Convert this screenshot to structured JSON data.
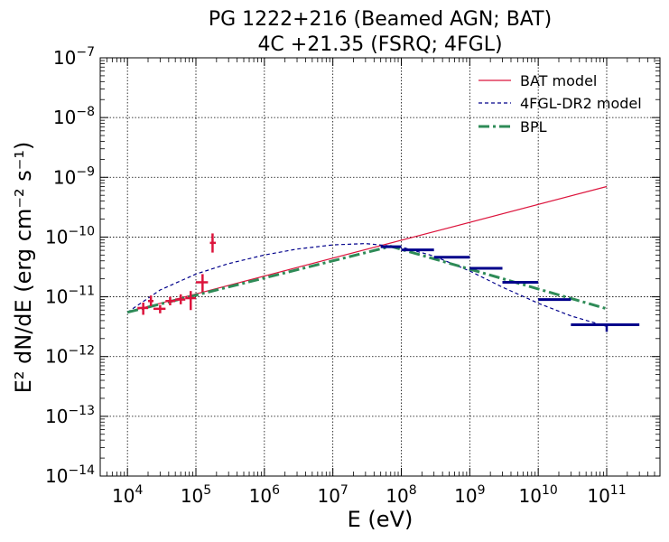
{
  "chart_data": {
    "type": "line",
    "title_line1": "PG 1222+216 (Beamed AGN; BAT)",
    "title_line2": "4C +21.35 (FSRQ; 4FGL)",
    "xlabel": "E (eV)",
    "ylabel": "E² dN/dE (erg cm⁻² s⁻¹)",
    "x_scale": "log",
    "y_scale": "log",
    "xlim": [
      4000,
      600000000000.0
    ],
    "ylim": [
      1e-14,
      1e-07
    ],
    "grid": true,
    "legend_position": "top-right",
    "x_ticks": [
      {
        "value": 10000,
        "base": "10",
        "exp": "4"
      },
      {
        "value": 100000,
        "base": "10",
        "exp": "5"
      },
      {
        "value": 1000000,
        "base": "10",
        "exp": "6"
      },
      {
        "value": 10000000,
        "base": "10",
        "exp": "7"
      },
      {
        "value": 100000000,
        "base": "10",
        "exp": "8"
      },
      {
        "value": 1000000000,
        "base": "10",
        "exp": "9"
      },
      {
        "value": 10000000000,
        "base": "10",
        "exp": "10"
      },
      {
        "value": 100000000000,
        "base": "10",
        "exp": "11"
      }
    ],
    "y_ticks": [
      {
        "value": 1e-14,
        "base": "10",
        "exp": "−14"
      },
      {
        "value": 1e-13,
        "base": "10",
        "exp": "−13"
      },
      {
        "value": 1e-12,
        "base": "10",
        "exp": "−12"
      },
      {
        "value": 1e-11,
        "base": "10",
        "exp": "−11"
      },
      {
        "value": 1e-10,
        "base": "10",
        "exp": "−10"
      },
      {
        "value": 1e-09,
        "base": "10",
        "exp": "−9"
      },
      {
        "value": 1e-08,
        "base": "10",
        "exp": "−8"
      },
      {
        "value": 1e-07,
        "base": "10",
        "exp": "−7"
      }
    ],
    "series": [
      {
        "name": "BAT model",
        "color": "#dc143c",
        "style": "solid",
        "x": [
          10000,
          100000000000
        ],
        "y": [
          5.6e-12,
          7e-10
        ]
      },
      {
        "name": "4FGL-DR2 model",
        "color": "#00008b",
        "style": "dashed",
        "x": [
          10000,
          30000,
          100000,
          300000,
          1000000,
          3000000,
          10000000,
          30000000,
          100000000,
          300000000,
          1000000000,
          3000000000,
          10000000000,
          30000000000,
          100000000000
        ],
        "y": [
          5.5e-12,
          1.3e-11,
          2.4e-11,
          3.6e-11,
          5e-11,
          6.3e-11,
          7.4e-11,
          7.8e-11,
          6.8e-11,
          4.8e-11,
          2.7e-11,
          1.45e-11,
          7.8e-12,
          4.8e-12,
          3.2e-12
        ]
      },
      {
        "name": "BPL",
        "color": "#2e8b57",
        "style": "dashdot",
        "x": [
          10000,
          70000000,
          100000000000
        ],
        "y": [
          5.5e-12,
          7e-11,
          6.3e-12
        ]
      }
    ],
    "bat_points": [
      {
        "x": 17000,
        "y": 6.5e-12,
        "xerr": [
          14000,
          20000
        ],
        "yerr": [
          5e-12,
          8e-12
        ]
      },
      {
        "x": 22000,
        "y": 8.5e-12,
        "xerr": [
          20000,
          24000
        ],
        "yerr": [
          7e-12,
          1.05e-11
        ]
      },
      {
        "x": 30000,
        "y": 6.3e-12,
        "xerr": [
          24000,
          36000
        ],
        "yerr": [
          5.3e-12,
          7.3e-12
        ]
      },
      {
        "x": 42000,
        "y": 8.5e-12,
        "xerr": [
          36000,
          50000
        ],
        "yerr": [
          7.2e-12,
          1e-11
        ]
      },
      {
        "x": 60000,
        "y": 9e-12,
        "xerr": [
          50000,
          70000
        ],
        "yerr": [
          7.5e-12,
          1.1e-11
        ]
      },
      {
        "x": 84000,
        "y": 9.5e-12,
        "xerr": [
          70000,
          100000
        ],
        "yerr": [
          6e-12,
          1.25e-11
        ]
      },
      {
        "x": 125000,
        "y": 1.75e-11,
        "xerr": [
          100000,
          150000
        ],
        "yerr": [
          1.2e-11,
          2.4e-11
        ]
      },
      {
        "x": 175000,
        "y": 8e-11,
        "xerr": [
          160000,
          195000
        ],
        "yerr": [
          5.5e-11,
          1.15e-10
        ]
      }
    ],
    "fermi_points": [
      {
        "x": 70000000,
        "y": 6.9e-11,
        "xerr": [
          50000000,
          100000000
        ]
      },
      {
        "x": 170000000,
        "y": 6.1e-11,
        "xerr": [
          100000000,
          300000000
        ]
      },
      {
        "x": 550000000,
        "y": 4.6e-11,
        "xerr": [
          300000000,
          1000000000
        ]
      },
      {
        "x": 1700000000,
        "y": 3e-11,
        "xerr": [
          1000000000,
          3000000000
        ]
      },
      {
        "x": 5500000000,
        "y": 1.75e-11,
        "xerr": [
          3000000000,
          10000000000
        ]
      },
      {
        "x": 17000000000,
        "y": 9e-12,
        "xerr": [
          10000000000,
          30000000000
        ]
      },
      {
        "x": 100000000000,
        "y": 3.4e-12,
        "xerr": [
          30000000000,
          300000000000
        ],
        "yerr": [
          2.6e-12,
          3.4e-12
        ]
      }
    ]
  }
}
